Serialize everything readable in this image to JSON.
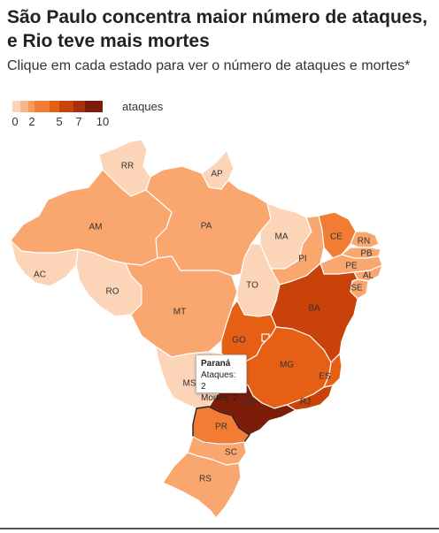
{
  "title": "São Paulo concentra maior número de ataques, e Rio teve mais mortes",
  "subtitle": "Clique em cada estado para ver o número de ataques e mortes*",
  "legend": {
    "unit": "ataques",
    "colors": [
      "#fcd4b8",
      "#fbb489",
      "#f89a60",
      "#f27c33",
      "#e55f14",
      "#c9420a",
      "#a6300a",
      "#7c1d0a"
    ],
    "ticks": [
      "0",
      "2",
      "5",
      "7",
      "10"
    ]
  },
  "tooltip": {
    "state": "Paraná",
    "attacks_label": "Ataques: 2",
    "deaths_label": "Mortes: 2"
  },
  "map_data": {
    "selected": "PR",
    "states": [
      {
        "abbr": "RR",
        "color": "#fcd4b8"
      },
      {
        "abbr": "AP",
        "color": "#fcd4b8"
      },
      {
        "abbr": "AM",
        "color": "#f9a66f"
      },
      {
        "abbr": "PA",
        "color": "#f9a66f"
      },
      {
        "abbr": "AC",
        "color": "#fcd4b8"
      },
      {
        "abbr": "RO",
        "color": "#fcd4b8"
      },
      {
        "abbr": "MT",
        "color": "#f9a66f"
      },
      {
        "abbr": "MA",
        "color": "#fcd4b8"
      },
      {
        "abbr": "PI",
        "color": "#f9a66f"
      },
      {
        "abbr": "TO",
        "color": "#fcd4b8"
      },
      {
        "abbr": "CE",
        "color": "#f27c33"
      },
      {
        "abbr": "RN",
        "color": "#f9a66f"
      },
      {
        "abbr": "PB",
        "color": "#f9a66f"
      },
      {
        "abbr": "PE",
        "color": "#f9a66f"
      },
      {
        "abbr": "AL",
        "color": "#f9a66f"
      },
      {
        "abbr": "SE",
        "color": "#f9a66f"
      },
      {
        "abbr": "BA",
        "color": "#c9420a"
      },
      {
        "abbr": "GO",
        "color": "#e55f14"
      },
      {
        "abbr": "DF",
        "color": "#e55f14"
      },
      {
        "abbr": "MS",
        "color": "#fcd4b8"
      },
      {
        "abbr": "MG",
        "color": "#e55f14"
      },
      {
        "abbr": "ES",
        "color": "#e55f14"
      },
      {
        "abbr": "RJ",
        "color": "#c9420a"
      },
      {
        "abbr": "SP",
        "color": "#7c1d0a"
      },
      {
        "abbr": "PR",
        "color": "#f27c33"
      },
      {
        "abbr": "SC",
        "color": "#f9a66f"
      },
      {
        "abbr": "RS",
        "color": "#f9a66f"
      }
    ]
  }
}
